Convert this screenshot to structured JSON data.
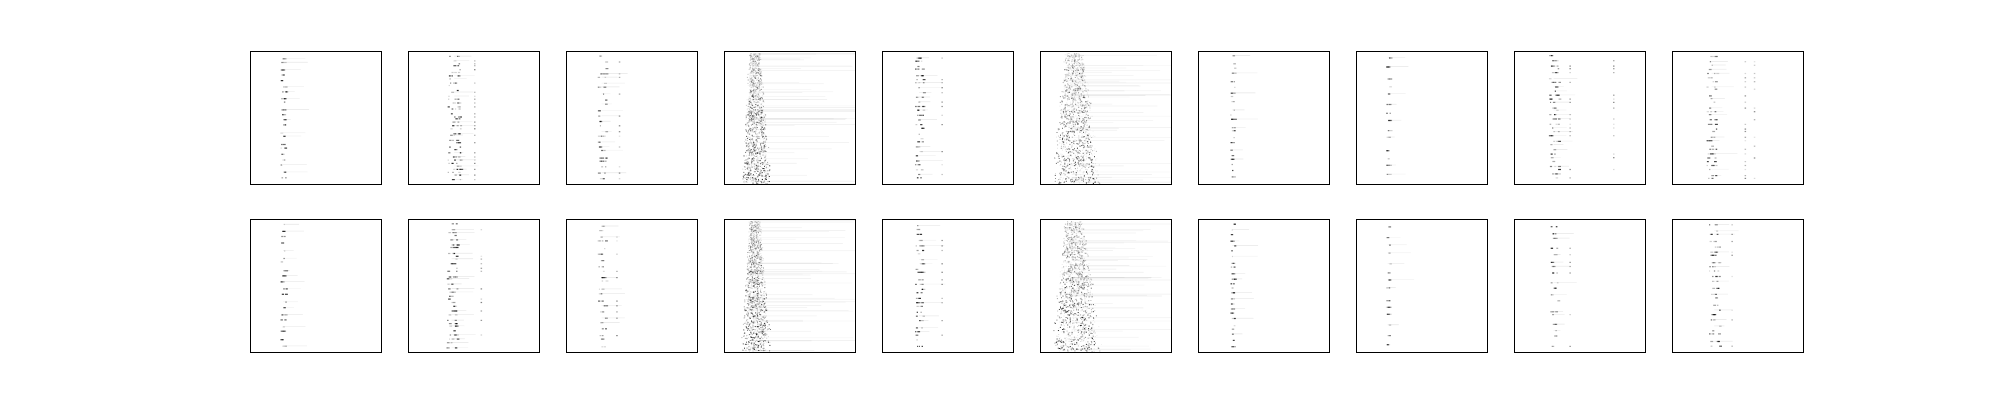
{
  "figure": {
    "background": "#ffffff",
    "frame_color": "#000000",
    "ink_color": "#000000"
  },
  "chart_data": {
    "type": "heatmap",
    "layout": {
      "rows": 2,
      "cols": 10
    },
    "title": "",
    "xlabel": "",
    "ylabel": "",
    "axes_ticks": false,
    "grid": false,
    "legend": "none",
    "colormap": "greys",
    "panels": [
      {
        "row": 0,
        "col": 0,
        "style": "sparse",
        "column_frac": 0.25,
        "spread_frac": 0.02,
        "side_columns": [],
        "intensity": 0.65,
        "rows_with_marks": 22
      },
      {
        "row": 0,
        "col": 1,
        "style": "sparse",
        "column_frac": 0.35,
        "spread_frac": 0.05,
        "side_columns": [
          0.5
        ],
        "intensity": 0.7,
        "rows_with_marks": 38
      },
      {
        "row": 0,
        "col": 2,
        "style": "sparse",
        "column_frac": 0.27,
        "spread_frac": 0.03,
        "side_columns": [
          0.4
        ],
        "intensity": 0.55,
        "rows_with_marks": 24
      },
      {
        "row": 0,
        "col": 3,
        "style": "dense",
        "column_frac": 0.22,
        "spread_frac": 0.06,
        "side_columns": [],
        "intensity": 0.75,
        "rows_with_marks": 60
      },
      {
        "row": 0,
        "col": 4,
        "style": "sparse",
        "column_frac": 0.28,
        "spread_frac": 0.03,
        "side_columns": [
          0.45
        ],
        "intensity": 0.7,
        "rows_with_marks": 28
      },
      {
        "row": 0,
        "col": 5,
        "style": "dense",
        "column_frac": 0.24,
        "spread_frac": 0.1,
        "side_columns": [],
        "intensity": 0.8,
        "rows_with_marks": 60
      },
      {
        "row": 0,
        "col": 6,
        "style": "sparse",
        "column_frac": 0.26,
        "spread_frac": 0.015,
        "side_columns": [],
        "intensity": 0.6,
        "rows_with_marks": 22
      },
      {
        "row": 0,
        "col": 7,
        "style": "sparse",
        "column_frac": 0.24,
        "spread_frac": 0.015,
        "side_columns": [],
        "intensity": 0.55,
        "rows_with_marks": 14
      },
      {
        "row": 0,
        "col": 8,
        "style": "sparse",
        "column_frac": 0.3,
        "spread_frac": 0.04,
        "side_columns": [
          0.42,
          0.75
        ],
        "intensity": 0.7,
        "rows_with_marks": 30
      },
      {
        "row": 0,
        "col": 9,
        "style": "sparse",
        "column_frac": 0.3,
        "spread_frac": 0.04,
        "side_columns": [
          0.55,
          0.62
        ],
        "intensity": 0.6,
        "rows_with_marks": 30
      },
      {
        "row": 1,
        "col": 0,
        "style": "sparse",
        "column_frac": 0.25,
        "spread_frac": 0.02,
        "side_columns": [],
        "intensity": 0.65,
        "rows_with_marks": 20
      },
      {
        "row": 1,
        "col": 1,
        "style": "sparse",
        "column_frac": 0.33,
        "spread_frac": 0.04,
        "side_columns": [
          0.55
        ],
        "intensity": 0.7,
        "rows_with_marks": 32
      },
      {
        "row": 1,
        "col": 2,
        "style": "sparse",
        "column_frac": 0.27,
        "spread_frac": 0.03,
        "side_columns": [
          0.38
        ],
        "intensity": 0.6,
        "rows_with_marks": 22
      },
      {
        "row": 1,
        "col": 3,
        "style": "dense",
        "column_frac": 0.22,
        "spread_frac": 0.06,
        "side_columns": [],
        "intensity": 0.75,
        "rows_with_marks": 60
      },
      {
        "row": 1,
        "col": 4,
        "style": "sparse",
        "column_frac": 0.28,
        "spread_frac": 0.03,
        "side_columns": [
          0.45
        ],
        "intensity": 0.7,
        "rows_with_marks": 26
      },
      {
        "row": 1,
        "col": 5,
        "style": "dense",
        "column_frac": 0.24,
        "spread_frac": 0.1,
        "side_columns": [
          0.33
        ],
        "intensity": 0.8,
        "rows_with_marks": 60
      },
      {
        "row": 1,
        "col": 6,
        "style": "sparse",
        "column_frac": 0.26,
        "spread_frac": 0.015,
        "side_columns": [],
        "intensity": 0.65,
        "rows_with_marks": 24
      },
      {
        "row": 1,
        "col": 7,
        "style": "sparse",
        "column_frac": 0.24,
        "spread_frac": 0.015,
        "side_columns": [],
        "intensity": 0.55,
        "rows_with_marks": 14
      },
      {
        "row": 1,
        "col": 8,
        "style": "sparse",
        "column_frac": 0.3,
        "spread_frac": 0.03,
        "side_columns": [
          0.42
        ],
        "intensity": 0.65,
        "rows_with_marks": 18
      },
      {
        "row": 1,
        "col": 9,
        "style": "sparse",
        "column_frac": 0.32,
        "spread_frac": 0.04,
        "side_columns": [
          0.45
        ],
        "intensity": 0.6,
        "rows_with_marks": 24
      }
    ]
  }
}
